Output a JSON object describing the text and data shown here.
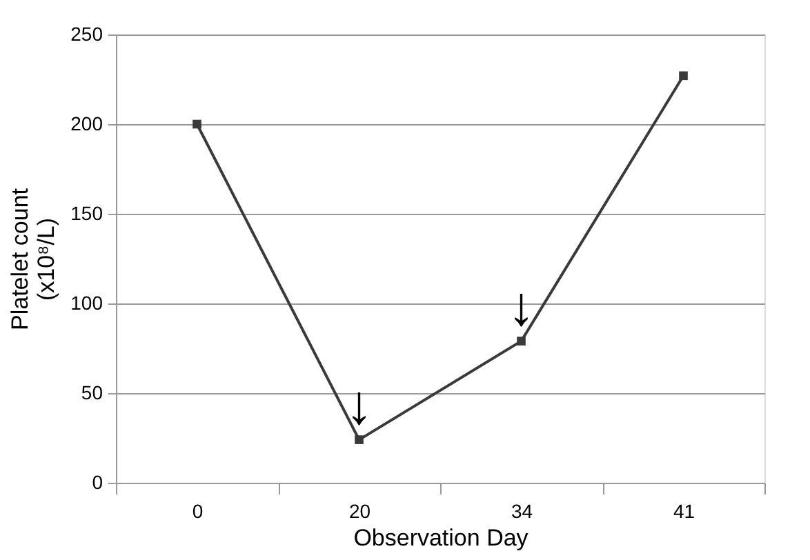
{
  "chart_data": {
    "type": "line",
    "xlabel": "Observation Day",
    "ylabel": "Platelet count (x10⁸/L)",
    "categories": [
      "0",
      "20",
      "34",
      "41"
    ],
    "series": [
      {
        "color": "#3a3a3a",
        "values": [
          200,
          24,
          79,
          227
        ]
      }
    ],
    "ylim": [
      0,
      250
    ],
    "yticks": [
      0,
      50,
      100,
      150,
      200,
      250
    ],
    "grid": "y",
    "marker": "square",
    "line_style": "solid",
    "annotations": [
      {
        "text": "↓",
        "x": "20",
        "y": 24
      },
      {
        "text": "↓",
        "x": "34",
        "y": 79
      }
    ]
  }
}
